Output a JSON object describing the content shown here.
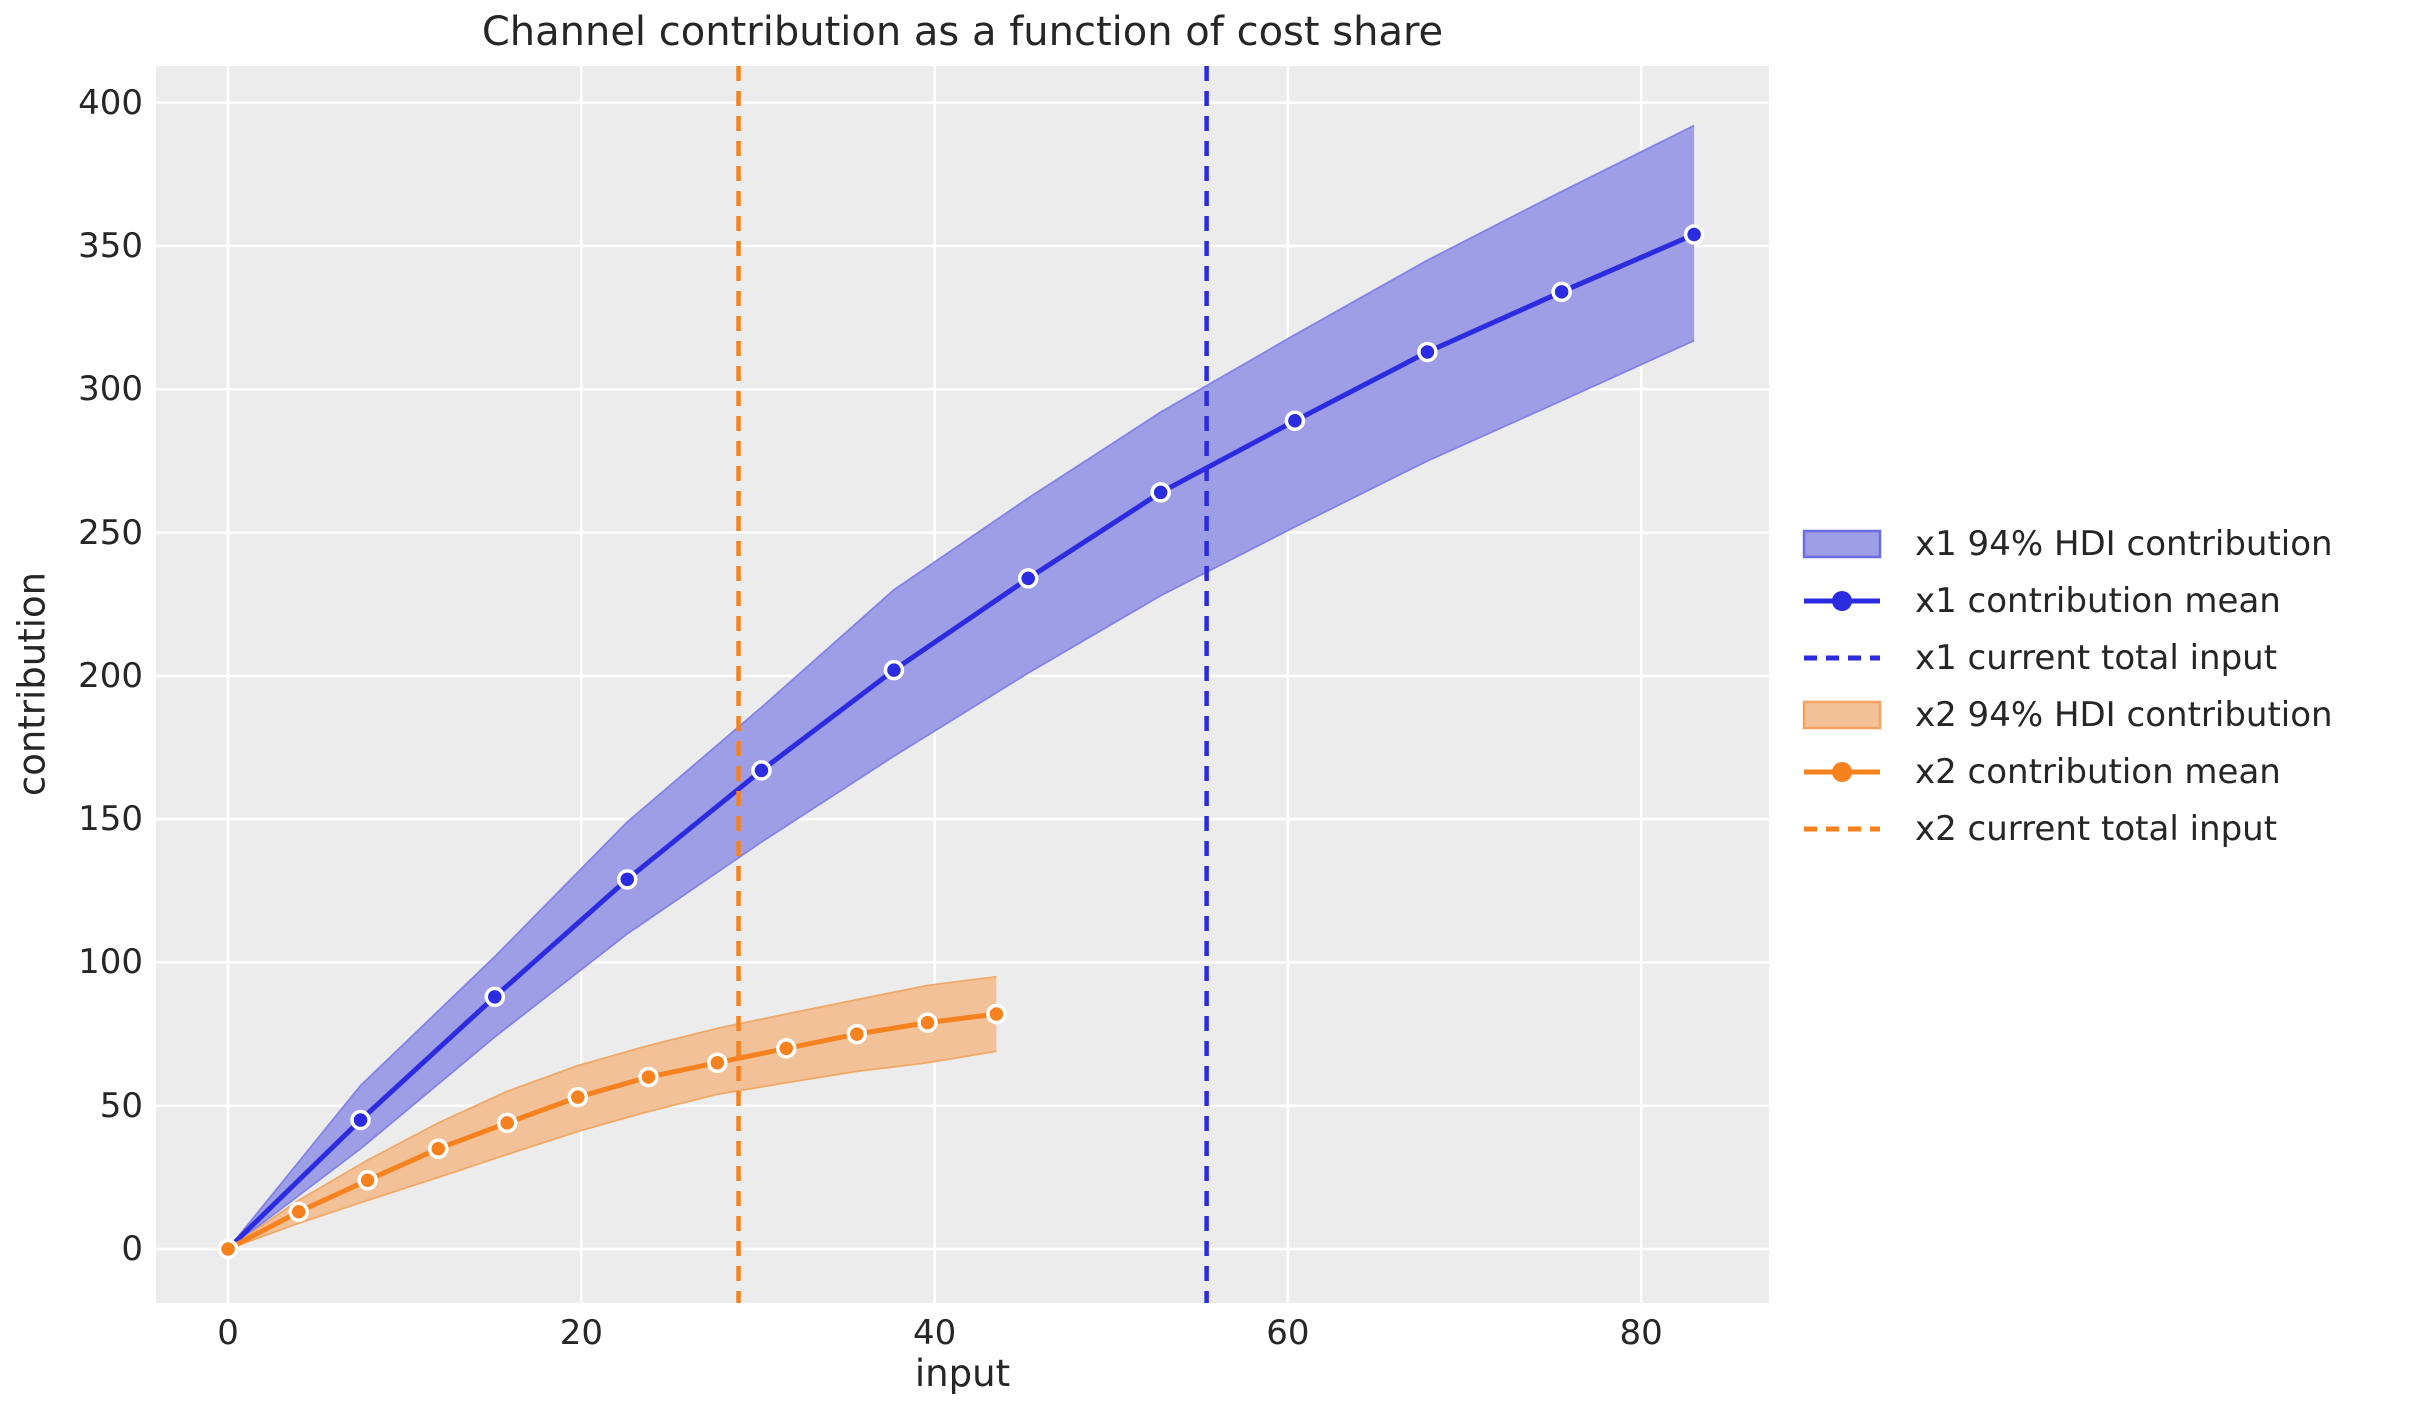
{
  "figure": {
    "title": "Channel contribution as a function of cost share"
  },
  "chart_data": {
    "type": "line",
    "title": "Channel contribution as a function of cost share",
    "xlabel": "input",
    "ylabel": "contribution",
    "x_ticks": [
      0,
      20,
      40,
      60,
      80
    ],
    "y_ticks": [
      0,
      50,
      100,
      150,
      200,
      250,
      300,
      350,
      400
    ],
    "xlim": [
      -4.08,
      87.24
    ],
    "ylim": [
      -18.84,
      412.8
    ],
    "grid": true,
    "legend_position": "center right, outside axes",
    "background": "#ececec",
    "gridline_color": "#ffffff",
    "series": [
      {
        "name": "x1",
        "color": "#2b2be0",
        "band_fill": "#9e9ee7",
        "band_edge": "#8282e8",
        "x": [
          0,
          7.5,
          15.1,
          22.6,
          30.2,
          37.7,
          45.3,
          52.8,
          60.4,
          67.9,
          75.5,
          83.0
        ],
        "mean": [
          0,
          45,
          88,
          129,
          167,
          202,
          234,
          264,
          289,
          313,
          334,
          354
        ],
        "hdi_lower": [
          0,
          35,
          74,
          110,
          142,
          172,
          201,
          228,
          252,
          275,
          296,
          317
        ],
        "hdi_upper": [
          0,
          57,
          102,
          149,
          189,
          230,
          262,
          292,
          319,
          345,
          369,
          392
        ],
        "current_total_input": 55.4
      },
      {
        "name": "x2",
        "color": "#f5821e",
        "band_fill": "#f2c198",
        "band_edge": "#f0a968",
        "x": [
          0,
          4.0,
          7.9,
          11.9,
          15.8,
          19.8,
          23.8,
          27.7,
          31.6,
          35.6,
          39.6,
          43.5
        ],
        "mean": [
          0,
          13,
          24,
          35,
          44,
          53,
          60,
          65,
          70,
          75,
          79,
          82
        ],
        "hdi_lower": [
          0,
          9,
          17,
          25,
          33,
          41,
          48,
          54,
          58,
          62,
          65,
          69
        ],
        "hdi_upper": [
          0,
          17,
          31,
          44,
          55,
          64,
          71,
          77,
          82,
          87,
          92,
          95
        ],
        "current_total_input": 28.9
      }
    ]
  },
  "legend": {
    "items": [
      {
        "label": "x1 94% HDI contribution",
        "type": "band",
        "fill": "#9e9ee7",
        "stroke": "#6b6be8"
      },
      {
        "label": "x1 contribution mean",
        "type": "line-marker",
        "color": "#2b2be0"
      },
      {
        "label": "x1 current total input",
        "type": "dash",
        "color": "#2b2be0"
      },
      {
        "label": "x2 94% HDI contribution",
        "type": "band",
        "fill": "#f2c198",
        "stroke": "#f5a35f"
      },
      {
        "label": "x2 contribution mean",
        "type": "line-marker",
        "color": "#f5821e"
      },
      {
        "label": "x2 current total input",
        "type": "dash",
        "color": "#f5821e"
      }
    ]
  }
}
